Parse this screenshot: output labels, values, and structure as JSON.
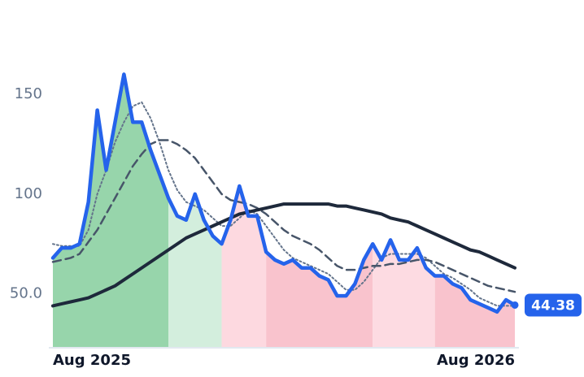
{
  "chart_data": {
    "type": "line",
    "x": [
      0,
      1,
      2,
      3,
      4,
      5,
      6,
      7,
      8,
      9,
      10,
      11,
      12,
      13,
      14,
      15,
      16,
      17,
      18,
      19,
      20,
      21,
      22,
      23,
      24,
      25,
      26,
      27,
      28,
      29,
      30,
      31,
      32,
      33,
      34,
      35,
      36,
      37,
      38,
      39,
      40,
      41,
      42,
      43,
      44,
      45,
      46,
      47,
      48,
      49,
      50,
      51,
      52
    ],
    "xlim": [
      0,
      52
    ],
    "xticks": [
      {
        "value": 0,
        "label": "Aug 2025"
      },
      {
        "value": 52,
        "label": "Aug 2026"
      }
    ],
    "ylim": [
      23,
      185
    ],
    "yticks": [
      {
        "value": 50,
        "label": "50.0"
      },
      100,
      150
    ],
    "grid": false,
    "bands": [
      {
        "from": 0,
        "to": 13,
        "color": "#97d5ab"
      },
      {
        "from": 13,
        "to": 19,
        "color": "#d3eedd"
      },
      {
        "from": 19,
        "to": 24,
        "color": "#fdd9e0"
      },
      {
        "from": 24,
        "to": 36,
        "color": "#f9c3cd"
      },
      {
        "from": 36,
        "to": 43,
        "color": "#fddbe2"
      },
      {
        "from": 43,
        "to": 52,
        "color": "#f9c3cd"
      }
    ],
    "series": [
      {
        "color": "#64748b",
        "style": "dotted",
        "width": 2,
        "values": [
          75,
          74,
          74,
          74,
          82,
          100,
          112,
          126,
          136,
          144,
          146,
          138,
          126,
          112,
          102,
          96,
          94,
          92,
          88,
          84,
          84,
          88,
          92,
          90,
          84,
          78,
          72,
          68,
          66,
          64,
          62,
          60,
          56,
          52,
          52,
          56,
          62,
          68,
          70,
          70,
          70,
          70,
          68,
          64,
          60,
          58,
          55,
          52,
          48,
          46,
          44,
          44,
          44
        ]
      },
      {
        "color": "#475569",
        "style": "dashed",
        "width": 2.5,
        "values": [
          66,
          67,
          68,
          70,
          76,
          82,
          90,
          98,
          106,
          114,
          120,
          125,
          127,
          127,
          125,
          122,
          118,
          112,
          106,
          100,
          97,
          96,
          95,
          93,
          90,
          86,
          82,
          79,
          77,
          75,
          72,
          68,
          64,
          62,
          62,
          63,
          64,
          64,
          65,
          65,
          66,
          67,
          67,
          66,
          64,
          62,
          60,
          58,
          56,
          54,
          53,
          52,
          51
        ]
      },
      {
        "color": "#1e293b",
        "style": "solid",
        "width": 4,
        "values": [
          44,
          45,
          46,
          47,
          48,
          50,
          52,
          54,
          57,
          60,
          63,
          66,
          69,
          72,
          75,
          78,
          80,
          82,
          84,
          86,
          88,
          90,
          91,
          92,
          93,
          94,
          95,
          95,
          95,
          95,
          95,
          95,
          94,
          94,
          93,
          92,
          91,
          90,
          88,
          87,
          86,
          84,
          82,
          80,
          78,
          76,
          74,
          72,
          71,
          69,
          67,
          65,
          63
        ]
      },
      {
        "color": "#2563eb",
        "style": "solid",
        "width": 4.5,
        "values": [
          68,
          73,
          73,
          75,
          96,
          142,
          112,
          136,
          160,
          136,
          136,
          122,
          110,
          98,
          89,
          87,
          100,
          87,
          79,
          75,
          87,
          104,
          89,
          89,
          71,
          67,
          65,
          67,
          63,
          63,
          59,
          57,
          49,
          49,
          55,
          67,
          75,
          67,
          77,
          67,
          67,
          73,
          63,
          59,
          59,
          55,
          53,
          47,
          45,
          43,
          41,
          47,
          44.38
        ]
      }
    ]
  }
}
